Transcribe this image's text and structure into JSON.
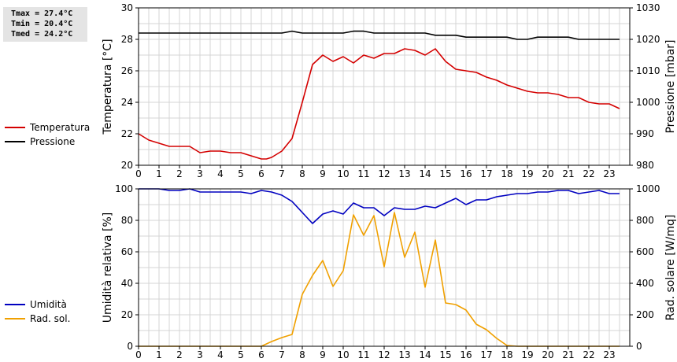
{
  "stats": {
    "tmax": "Tmax = 27.4°C",
    "tmin": "Tmin = 20.4°C",
    "tmed": "Tmed = 24.2°C"
  },
  "legend_top": [
    {
      "label": "Temperatura",
      "color": "#d40000"
    },
    {
      "label": "Pressione",
      "color": "#000000"
    }
  ],
  "legend_bottom": [
    {
      "label": "Umidità",
      "color": "#0000c0"
    },
    {
      "label": "Rad. sol.",
      "color": "#f0a000"
    }
  ],
  "chart_data": [
    {
      "type": "line",
      "x_ticks": [
        0,
        1,
        2,
        3,
        4,
        5,
        6,
        7,
        8,
        9,
        10,
        11,
        12,
        13,
        14,
        15,
        16,
        17,
        18,
        19,
        20,
        21,
        22,
        23
      ],
      "ylabel": "Temperatura [°C]",
      "ylim": [
        20,
        30
      ],
      "y_ticks": [
        20,
        22,
        24,
        26,
        28,
        30
      ],
      "y2label": "Pressione [mbar]",
      "y2lim": [
        980,
        1030
      ],
      "y2_ticks": [
        980,
        990,
        1000,
        1010,
        1020,
        1030
      ],
      "grid": true,
      "series": [
        {
          "name": "Temperatura",
          "axis": "left",
          "color": "#d40000",
          "x": [
            0,
            0.5,
            1,
            1.5,
            2,
            2.5,
            3,
            3.5,
            4,
            4.5,
            5,
            5.5,
            6,
            6.25,
            6.5,
            7,
            7.5,
            8,
            8.5,
            9,
            9.5,
            10,
            10.5,
            11,
            11.5,
            12,
            12.5,
            13,
            13.5,
            14,
            14.5,
            15,
            15.5,
            16,
            16.5,
            17,
            17.5,
            18,
            18.5,
            19,
            19.5,
            20,
            20.5,
            21,
            21.5,
            22,
            22.5,
            23,
            23.5
          ],
          "y": [
            22.0,
            21.6,
            21.4,
            21.2,
            21.2,
            21.2,
            20.8,
            20.9,
            20.9,
            20.8,
            20.8,
            20.6,
            20.4,
            20.4,
            20.5,
            20.9,
            21.7,
            24.0,
            26.4,
            27.0,
            26.6,
            26.9,
            26.5,
            27.0,
            26.8,
            27.1,
            27.1,
            27.4,
            27.3,
            27.0,
            27.4,
            26.6,
            26.1,
            26.0,
            25.9,
            25.6,
            25.4,
            25.1,
            24.9,
            24.7,
            24.6,
            24.6,
            24.5,
            24.3,
            24.3,
            24.0,
            23.9,
            23.9,
            23.6
          ]
        },
        {
          "name": "Pressione",
          "axis": "right",
          "color": "#000000",
          "x": [
            0,
            0.5,
            1,
            1.5,
            2,
            2.5,
            3,
            3.5,
            4,
            4.5,
            5,
            5.5,
            6,
            6.5,
            7,
            7.5,
            8,
            8.5,
            9,
            9.5,
            10,
            10.5,
            11,
            11.5,
            12,
            12.5,
            13,
            13.5,
            14,
            14.5,
            15,
            15.5,
            16,
            16.5,
            17,
            17.5,
            18,
            18.5,
            19,
            19.5,
            20,
            20.5,
            21,
            21.5,
            22,
            22.5,
            23,
            23.5
          ],
          "y": [
            1022,
            1022,
            1022,
            1022,
            1022,
            1022,
            1022,
            1022,
            1022,
            1022,
            1022,
            1022,
            1022,
            1022,
            1022,
            1022.6,
            1022,
            1022,
            1022,
            1022,
            1022,
            1022.6,
            1022.6,
            1022,
            1022,
            1022,
            1022,
            1022,
            1022,
            1021.3,
            1021.3,
            1021.3,
            1020.7,
            1020.7,
            1020.7,
            1020.7,
            1020.7,
            1020,
            1020,
            1020.7,
            1020.7,
            1020.7,
            1020.7,
            1020,
            1020,
            1020,
            1020,
            1020
          ]
        }
      ]
    },
    {
      "type": "line",
      "x_ticks": [
        0,
        1,
        2,
        3,
        4,
        5,
        6,
        7,
        8,
        9,
        10,
        11,
        12,
        13,
        14,
        15,
        16,
        17,
        18,
        19,
        20,
        21,
        22,
        23
      ],
      "ylabel": "Umidità relativa [%]",
      "ylim": [
        0,
        100
      ],
      "y_ticks": [
        0,
        20,
        40,
        60,
        80,
        100
      ],
      "y2label": "Rad. solare [W/mq]",
      "y2lim": [
        0,
        1000
      ],
      "y2_ticks": [
        0,
        200,
        400,
        600,
        800,
        1000
      ],
      "grid": true,
      "series": [
        {
          "name": "Umidità",
          "axis": "left",
          "color": "#0000c0",
          "x": [
            0,
            0.5,
            1,
            1.5,
            2,
            2.5,
            3,
            3.5,
            4,
            4.5,
            5,
            5.5,
            6,
            6.5,
            7,
            7.5,
            8,
            8.5,
            9,
            9.5,
            10,
            10.5,
            11,
            11.5,
            12,
            12.5,
            13,
            13.5,
            14,
            14.5,
            15,
            15.5,
            16,
            16.5,
            17,
            17.5,
            18,
            18.5,
            19,
            19.5,
            20,
            20.5,
            21,
            21.5,
            22,
            22.5,
            23,
            23.5
          ],
          "y": [
            100,
            100,
            100,
            99,
            99,
            100,
            98,
            98,
            98,
            98,
            98,
            97,
            99,
            98,
            96,
            92,
            85,
            78,
            84,
            86,
            84,
            91,
            88,
            88,
            83,
            88,
            87,
            87,
            89,
            88,
            91,
            94,
            90,
            93,
            93,
            95,
            96,
            97,
            97,
            98,
            98,
            99,
            99,
            97,
            98,
            99,
            97,
            97
          ]
        },
        {
          "name": "Rad. sol.",
          "axis": "right",
          "color": "#f0a000",
          "x": [
            0,
            0.5,
            1,
            1.5,
            2,
            2.5,
            3,
            3.5,
            4,
            4.5,
            5,
            5.5,
            6,
            6.5,
            7,
            7.5,
            8,
            8.5,
            9,
            9.5,
            10,
            10.5,
            11,
            11.5,
            12,
            12.5,
            13,
            13.5,
            14,
            14.5,
            15,
            15.5,
            16,
            16.5,
            17,
            17.5,
            18,
            18.5,
            19,
            19.5,
            20,
            20.5,
            21,
            21.5,
            22,
            22.5,
            23,
            23.5
          ],
          "y": [
            0,
            0,
            0,
            0,
            0,
            0,
            0,
            0,
            0,
            0,
            0,
            0,
            0,
            30,
            55,
            75,
            330,
            450,
            545,
            380,
            480,
            835,
            705,
            830,
            505,
            850,
            565,
            725,
            375,
            675,
            275,
            265,
            230,
            140,
            105,
            50,
            5,
            0,
            0,
            0,
            0,
            0,
            0,
            0,
            0,
            0,
            0,
            0
          ]
        }
      ]
    }
  ]
}
